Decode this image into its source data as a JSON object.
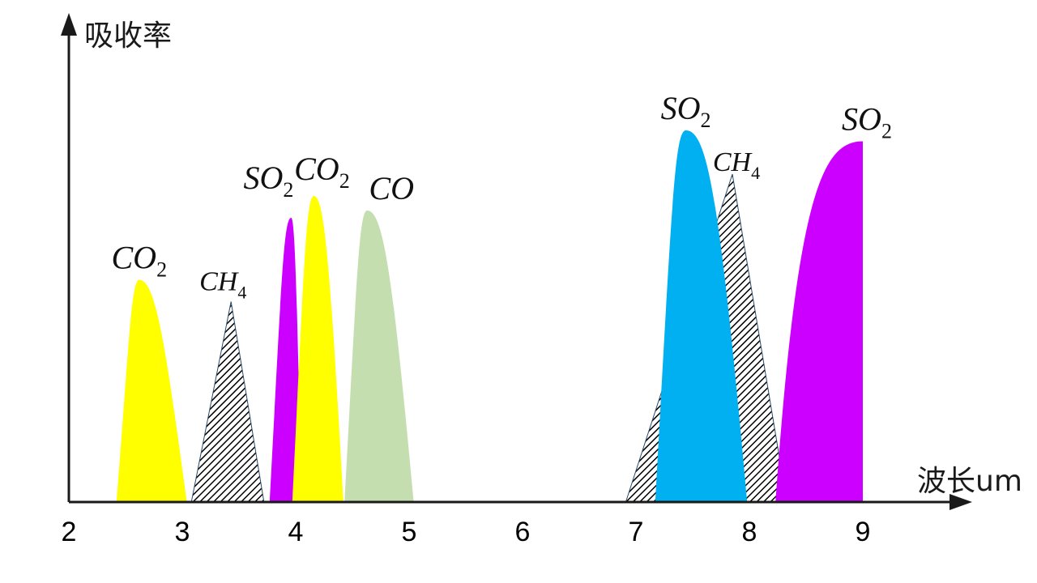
{
  "chart_data": {
    "type": "area",
    "title": "",
    "xlabel": "波长um",
    "ylabel": "吸收率",
    "x_ticks": [
      "2",
      "3",
      "4",
      "5",
      "6",
      "7",
      "8",
      "9"
    ],
    "xlim": [
      2,
      9.9
    ],
    "ylim": [
      0,
      1.25
    ],
    "grid": false,
    "legend": "none",
    "peaks": [
      {
        "label": "CO",
        "sub": "2",
        "fill": "#ffff00",
        "hatch": false,
        "start": 2.42,
        "center": 2.62,
        "end": 3.04,
        "height": 0.61
      },
      {
        "label": "CH",
        "sub": "4",
        "fill": "hatch",
        "hatch": true,
        "start": 3.08,
        "center": 3.43,
        "end": 3.72,
        "height": 0.55
      },
      {
        "label": "SO",
        "sub": "2",
        "fill": "#cc00ff",
        "hatch": false,
        "start": 3.77,
        "center": 3.96,
        "end": 4.05,
        "height": 0.78
      },
      {
        "label": "CO",
        "sub": "2",
        "fill": "#ffff00",
        "hatch": false,
        "start": 3.97,
        "center": 4.16,
        "end": 4.42,
        "height": 0.84
      },
      {
        "label": "CO",
        "sub": "",
        "fill": "#c5deb0",
        "hatch": false,
        "start": 4.43,
        "center": 4.63,
        "end": 5.04,
        "height": 0.8
      },
      {
        "label": "CH",
        "sub": "4",
        "fill": "hatch",
        "hatch": true,
        "start": 6.91,
        "center": 7.85,
        "end": 8.33,
        "height": 0.9
      },
      {
        "label": "SO",
        "sub": "2",
        "fill": "#00b0f0",
        "hatch": false,
        "start": 7.17,
        "center": 7.44,
        "end": 7.98,
        "height": 1.02
      },
      {
        "label": "SO",
        "sub": "2",
        "fill": "#cc00ff",
        "hatch": false,
        "start": 8.23,
        "center": 9.0,
        "end": 9.0,
        "height": 0.99
      }
    ]
  }
}
